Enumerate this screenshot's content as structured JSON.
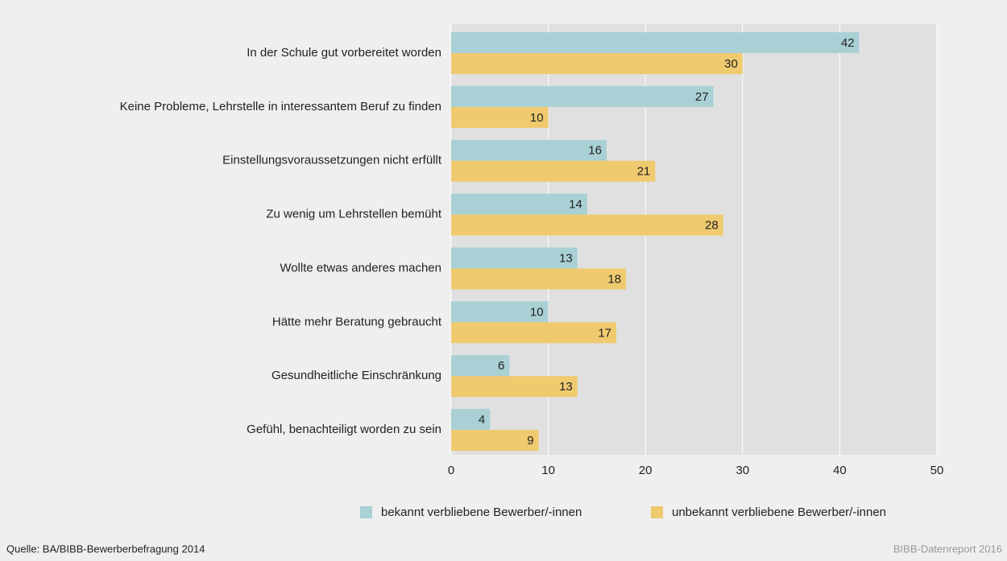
{
  "chart_data": {
    "type": "bar",
    "orientation": "horizontal",
    "categories": [
      "In der Schule gut vorbereitet worden",
      "Keine Probleme, Lehrstelle in interessantem Beruf zu finden",
      "Einstellungsvoraussetzungen nicht erfüllt",
      "Zu wenig um Lehrstellen bemüht",
      "Wollte etwas anderes machen",
      "Hätte mehr Beratung gebraucht",
      "Gesundheitliche Einschränkung",
      "Gefühl, benachteiligt worden zu sein"
    ],
    "series": [
      {
        "name": "bekannt verbliebene Bewerber/-innen",
        "color": "#a9d0d5",
        "values": [
          42,
          27,
          16,
          14,
          13,
          10,
          6,
          4
        ]
      },
      {
        "name": "unbekannt verbliebene Bewerber/-innen",
        "color": "#efca6f",
        "values": [
          30,
          10,
          21,
          28,
          18,
          17,
          13,
          9
        ]
      }
    ],
    "xlim": [
      0,
      50
    ],
    "xticks": [
      0,
      10,
      20,
      30,
      40,
      50
    ],
    "grid": true,
    "source": "Quelle: BA/BIBB-Bewerberbefragung 2014",
    "credit": "BIBB-Datenreport 2016"
  }
}
